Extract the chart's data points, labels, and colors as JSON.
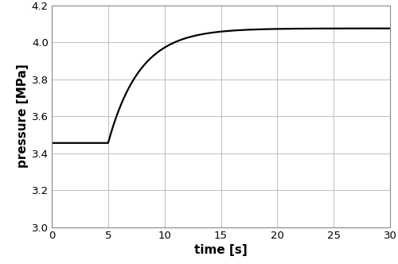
{
  "xlabel": "time [s]",
  "ylabel": "pressure [MPa]",
  "xlim": [
    0,
    30
  ],
  "ylim": [
    3.0,
    4.2
  ],
  "xticks": [
    0,
    5,
    10,
    15,
    20,
    25,
    30
  ],
  "yticks": [
    3.0,
    3.2,
    3.4,
    3.6,
    3.8,
    4.0,
    4.2
  ],
  "line_color": "#000000",
  "line_width": 1.6,
  "grid_color": "#c0c0c0",
  "background_color": "#ffffff",
  "initial_pressure": 3.455,
  "final_pressure": 4.075,
  "transition_start": 5.0,
  "transition_tau": 2.8,
  "xlabel_fontsize": 11,
  "ylabel_fontsize": 11,
  "tick_fontsize": 9.5,
  "spine_color": "#888888",
  "spine_linewidth": 0.8
}
